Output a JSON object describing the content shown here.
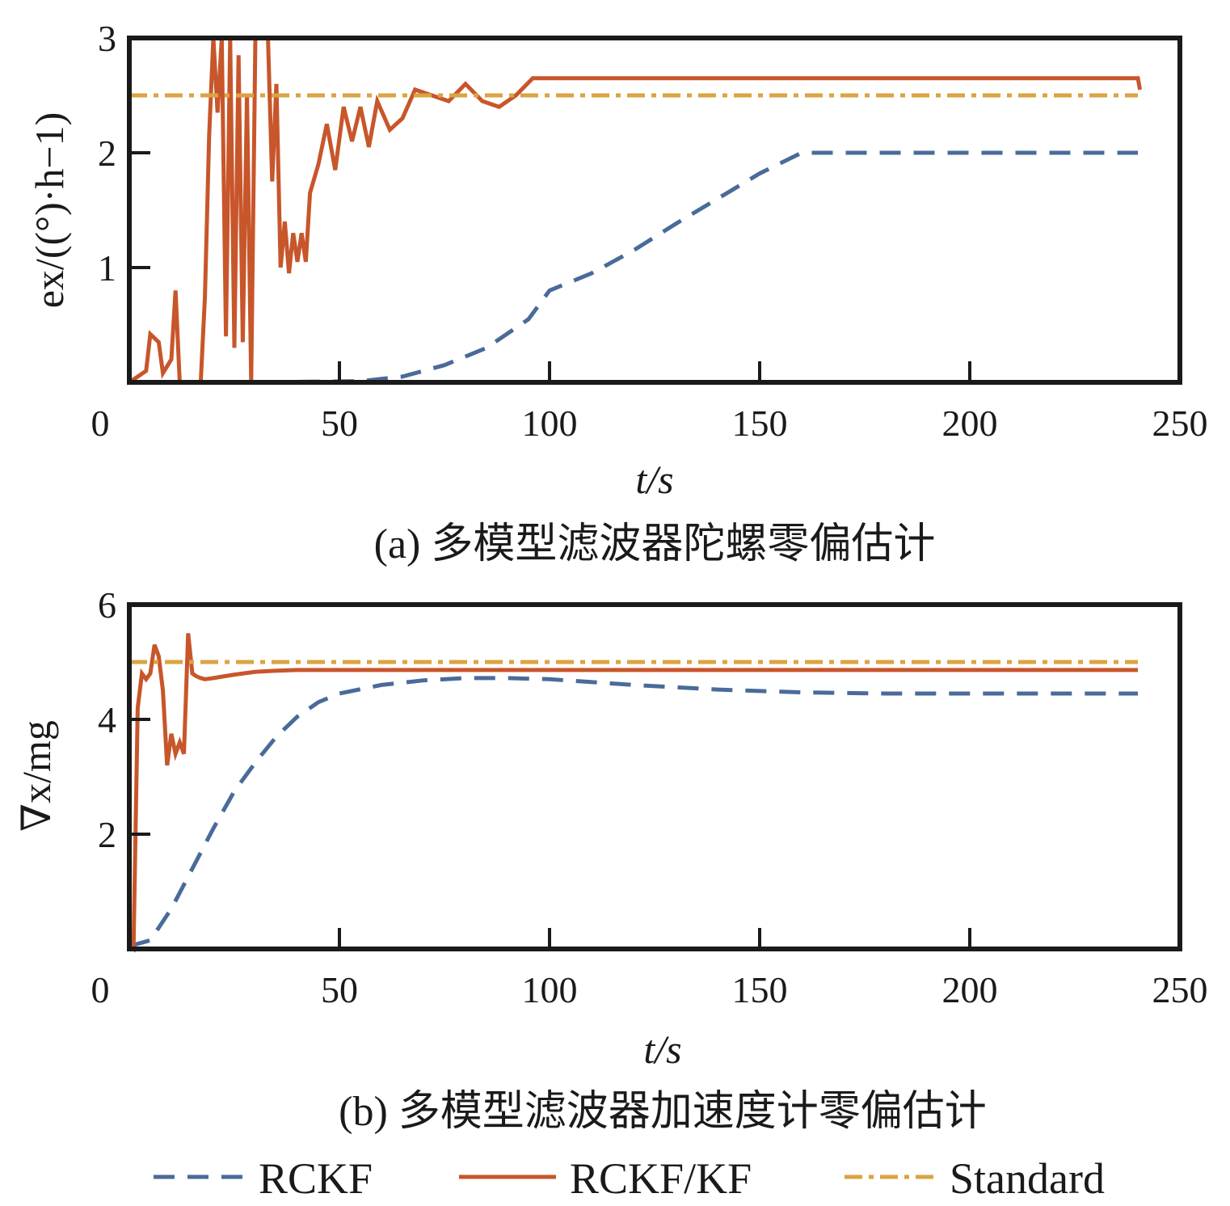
{
  "colors": {
    "rckf": "#4a6b9a",
    "rckfkf": "#c8562b",
    "standard": "#dba342",
    "frame": "#1a1a1a"
  },
  "legend": {
    "rckf": "RCKF",
    "rckfkf": "RCKF/KF",
    "standard": "Standard"
  },
  "chart_data": [
    {
      "type": "line",
      "panel": "a",
      "caption": "(a) 多模型滤波器陀螺零偏估计",
      "xlabel": "t/s",
      "ylabel": "ex/((°)·h−1)",
      "xlim": [
        0,
        250
      ],
      "ylim": [
        0,
        3
      ],
      "xticks": [
        0,
        50,
        100,
        150,
        200,
        250
      ],
      "yticks": [
        1,
        2,
        3
      ],
      "series": [
        {
          "name": "RCKF",
          "style": "dashed",
          "x": [
            0,
            30,
            55,
            65,
            75,
            85,
            95,
            100,
            110,
            120,
            130,
            140,
            150,
            160,
            240
          ],
          "y": [
            0.0,
            0.0,
            0.01,
            0.05,
            0.15,
            0.3,
            0.55,
            0.8,
            0.95,
            1.15,
            1.38,
            1.6,
            1.82,
            2.0,
            2.0
          ]
        },
        {
          "name": "RCKF/KF",
          "style": "solid",
          "x": [
            0,
            2,
            4,
            5,
            7,
            8,
            10,
            11,
            12,
            13,
            14,
            15,
            17,
            18,
            19,
            20,
            21,
            22,
            23,
            24,
            25,
            26,
            27,
            28,
            29,
            30,
            31,
            32,
            33,
            34,
            35,
            36,
            37,
            38,
            39,
            40,
            41,
            42,
            43,
            45,
            47,
            49,
            51,
            53,
            55,
            57,
            59,
            62,
            65,
            68,
            72,
            76,
            80,
            84,
            88,
            92,
            96,
            98,
            240,
            240.5
          ],
          "y": [
            0.0,
            0.05,
            0.1,
            0.42,
            0.35,
            0.08,
            0.2,
            0.8,
            0.0,
            0.0,
            0.0,
            0.0,
            0.0,
            0.75,
            2.15,
            3.1,
            2.35,
            3.05,
            0.4,
            3.05,
            0.3,
            2.85,
            0.35,
            2.5,
            0.0,
            3.05,
            3.05,
            3.05,
            3.05,
            1.75,
            2.6,
            1.0,
            1.4,
            0.95,
            1.3,
            1.05,
            1.3,
            1.05,
            1.65,
            1.9,
            2.25,
            1.85,
            2.4,
            2.1,
            2.4,
            2.05,
            2.45,
            2.2,
            2.3,
            2.55,
            2.5,
            2.45,
            2.6,
            2.45,
            2.4,
            2.5,
            2.65,
            2.65,
            2.65,
            2.55
          ]
        },
        {
          "name": "Standard",
          "style": "dashdot",
          "x": [
            0,
            240
          ],
          "y": [
            2.5,
            2.5
          ]
        }
      ]
    },
    {
      "type": "line",
      "panel": "b",
      "caption": "(b) 多模型滤波器加速度计零偏估计",
      "xlabel": "t/s",
      "ylabel": "∇x/mg",
      "xlim": [
        0,
        250
      ],
      "ylim": [
        0,
        6
      ],
      "xticks": [
        0,
        50,
        100,
        150,
        200,
        250
      ],
      "yticks": [
        2,
        4,
        6
      ],
      "series": [
        {
          "name": "RCKF",
          "style": "dashed",
          "x": [
            0,
            5,
            10,
            15,
            20,
            25,
            30,
            35,
            40,
            45,
            50,
            60,
            70,
            80,
            90,
            100,
            120,
            140,
            160,
            180,
            200,
            240
          ],
          "y": [
            0.05,
            0.15,
            0.7,
            1.4,
            2.1,
            2.75,
            3.25,
            3.7,
            4.05,
            4.3,
            4.45,
            4.6,
            4.68,
            4.72,
            4.72,
            4.7,
            4.6,
            4.52,
            4.47,
            4.45,
            4.45,
            4.45
          ]
        },
        {
          "name": "RCKF/KF",
          "style": "solid",
          "x": [
            0,
            1,
            2,
            3,
            4,
            5,
            6,
            7,
            8,
            9,
            10,
            11,
            12,
            13,
            14,
            15,
            16,
            17,
            18,
            20,
            25,
            30,
            35,
            40,
            50,
            100,
            240
          ],
          "y": [
            0.05,
            0.0,
            4.2,
            4.8,
            4.7,
            4.8,
            5.3,
            5.1,
            4.5,
            3.2,
            3.75,
            3.4,
            3.6,
            3.4,
            5.5,
            4.8,
            4.75,
            4.72,
            4.7,
            4.72,
            4.78,
            4.83,
            4.85,
            4.86,
            4.86,
            4.86,
            4.86
          ]
        },
        {
          "name": "Standard",
          "style": "dashdot",
          "x": [
            0,
            240
          ],
          "y": [
            5.0,
            5.0
          ]
        }
      ]
    }
  ]
}
